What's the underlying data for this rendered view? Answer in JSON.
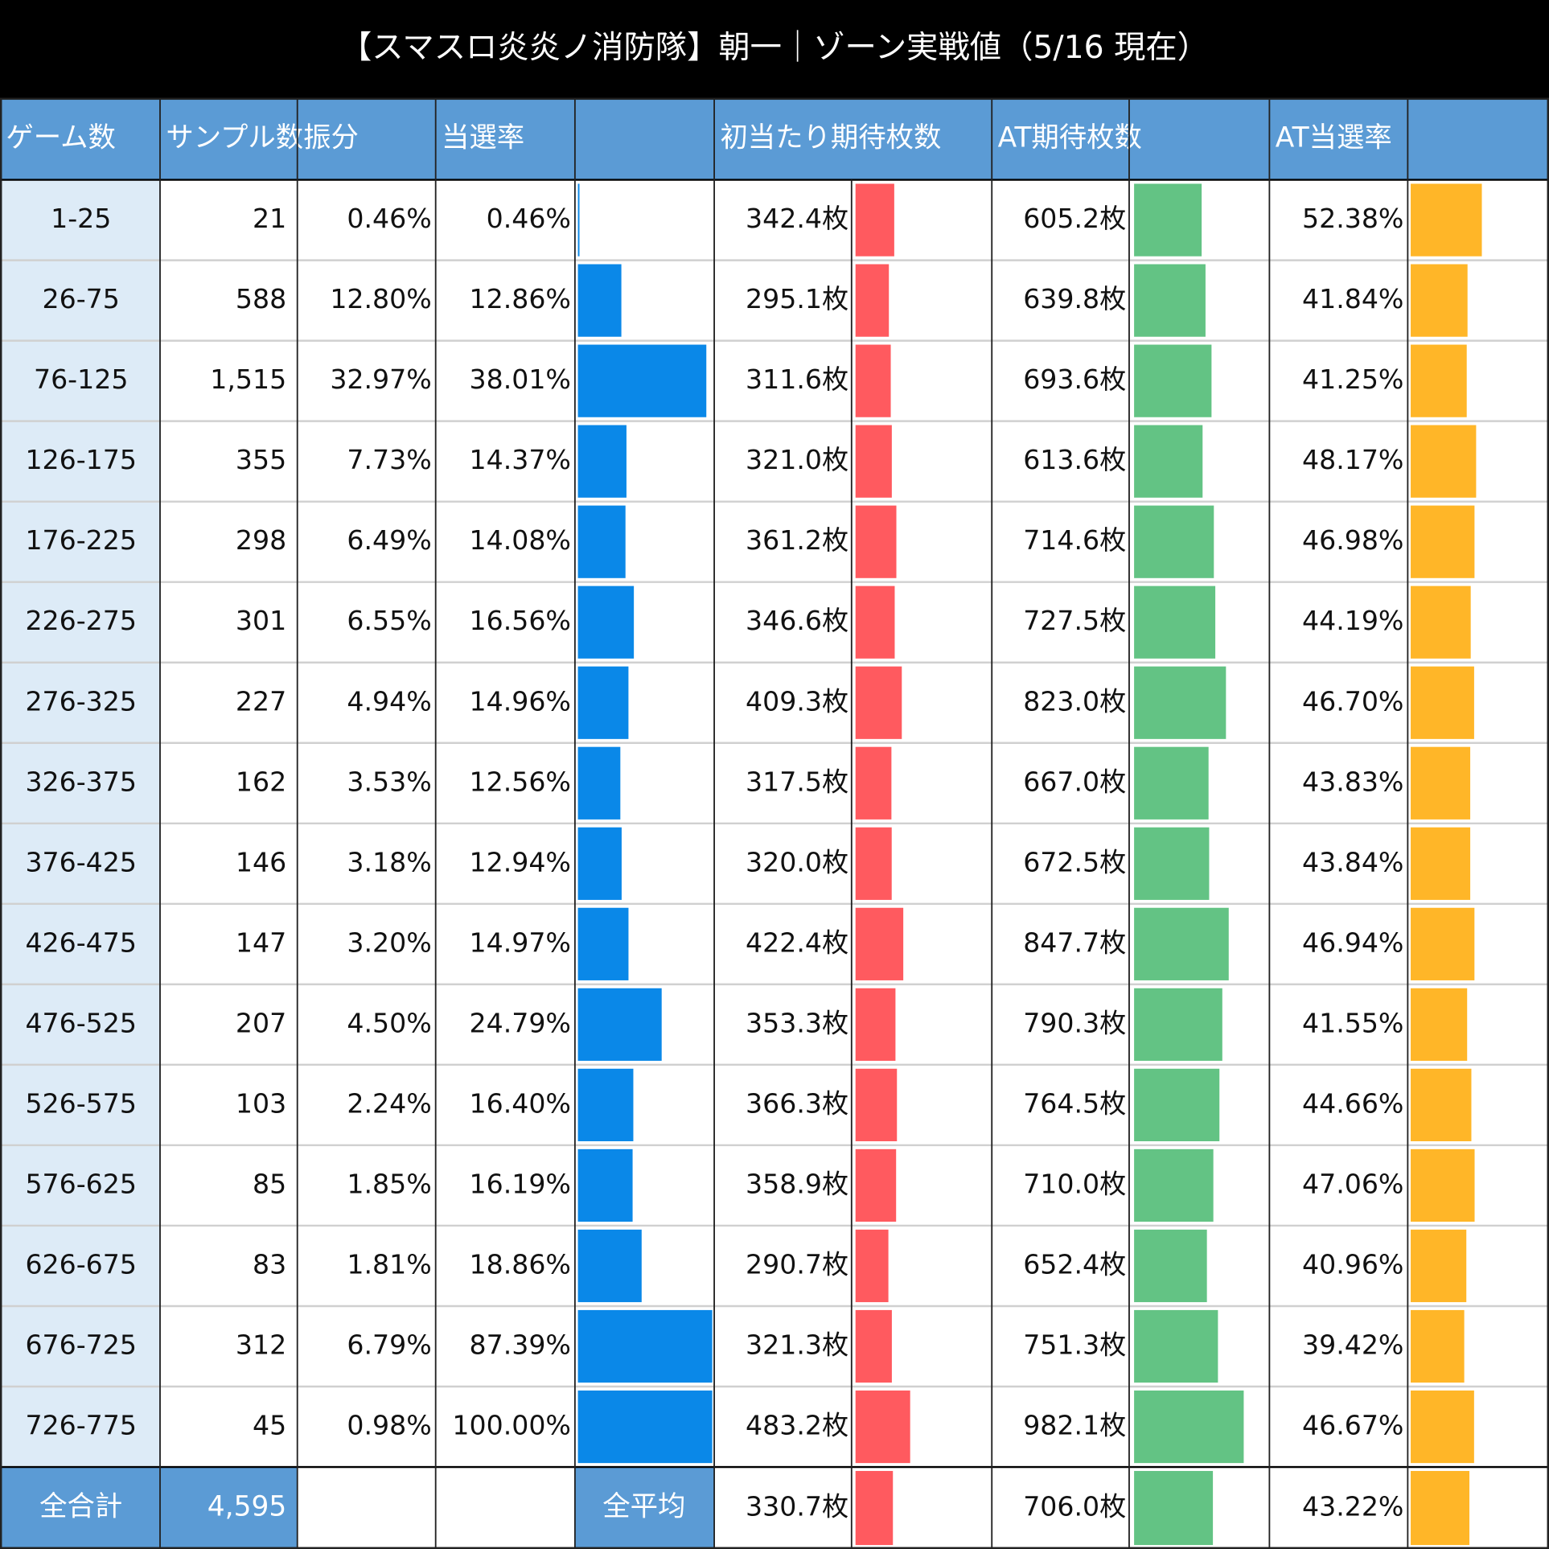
{
  "title": "【スマスロ炎炎ノ消防隊】朝一｜ゾーン実戦値（5/16 現在）",
  "table": {
    "headers": [
      "ゲーム数",
      "サンプル数",
      "振分",
      "当選率",
      "初当たり期待枚数",
      "AT期待枚数",
      "AT当選率"
    ],
    "rows": [
      [
        "1-25",
        "21",
        "0.46%",
        "0.46%",
        "342.4枚",
        "605.2枚",
        "52.38%"
      ],
      [
        "26-75",
        "588",
        "12.80%",
        "12.86%",
        "295.1枚",
        "639.8枚",
        "41.84%"
      ],
      [
        "76-125",
        "1,515",
        "32.97%",
        "38.01%",
        "311.6枚",
        "693.6枚",
        "41.25%"
      ],
      [
        "126-175",
        "355",
        "7.73%",
        "14.37%",
        "321.0枚",
        "613.6枚",
        "48.17%"
      ],
      [
        "176-225",
        "298",
        "6.49%",
        "14.08%",
        "361.2枚",
        "714.6枚",
        "46.98%"
      ],
      [
        "226-275",
        "301",
        "6.55%",
        "16.56%",
        "346.6枚",
        "727.5枚",
        "44.19%"
      ],
      [
        "276-325",
        "227",
        "4.94%",
        "14.96%",
        "409.3枚",
        "823.0枚",
        "46.70%"
      ],
      [
        "326-375",
        "162",
        "3.53%",
        "12.56%",
        "317.5枚",
        "667.0枚",
        "43.83%"
      ],
      [
        "376-425",
        "146",
        "3.18%",
        "12.94%",
        "320.0枚",
        "672.5枚",
        "43.84%"
      ],
      [
        "426-475",
        "147",
        "3.20%",
        "14.97%",
        "422.4枚",
        "847.7枚",
        "46.94%"
      ],
      [
        "476-525",
        "207",
        "4.50%",
        "24.79%",
        "353.3枚",
        "790.3枚",
        "41.55%"
      ],
      [
        "526-575",
        "103",
        "2.24%",
        "16.40%",
        "366.3枚",
        "764.5枚",
        "44.66%"
      ],
      [
        "576-625",
        "85",
        "1.85%",
        "16.19%",
        "358.9枚",
        "710.0枚",
        "47.06%"
      ],
      [
        "626-675",
        "83",
        "1.81%",
        "18.86%",
        "290.7枚",
        "652.4枚",
        "40.96%"
      ],
      [
        "676-725",
        "312",
        "6.79%",
        "87.39%",
        "321.3枚",
        "751.3枚",
        "39.42%"
      ],
      [
        "726-775",
        "45",
        "0.98%",
        "100.00%",
        "483.2枚",
        "982.1枚",
        "46.67%"
      ]
    ],
    "total": {
      "label": "全合計",
      "samples": "4,595",
      "avg_label": "全平均",
      "first_hit": "330.7枚",
      "at_expected": "706.0枚",
      "at_rate": "43.22%"
    }
  }
}
